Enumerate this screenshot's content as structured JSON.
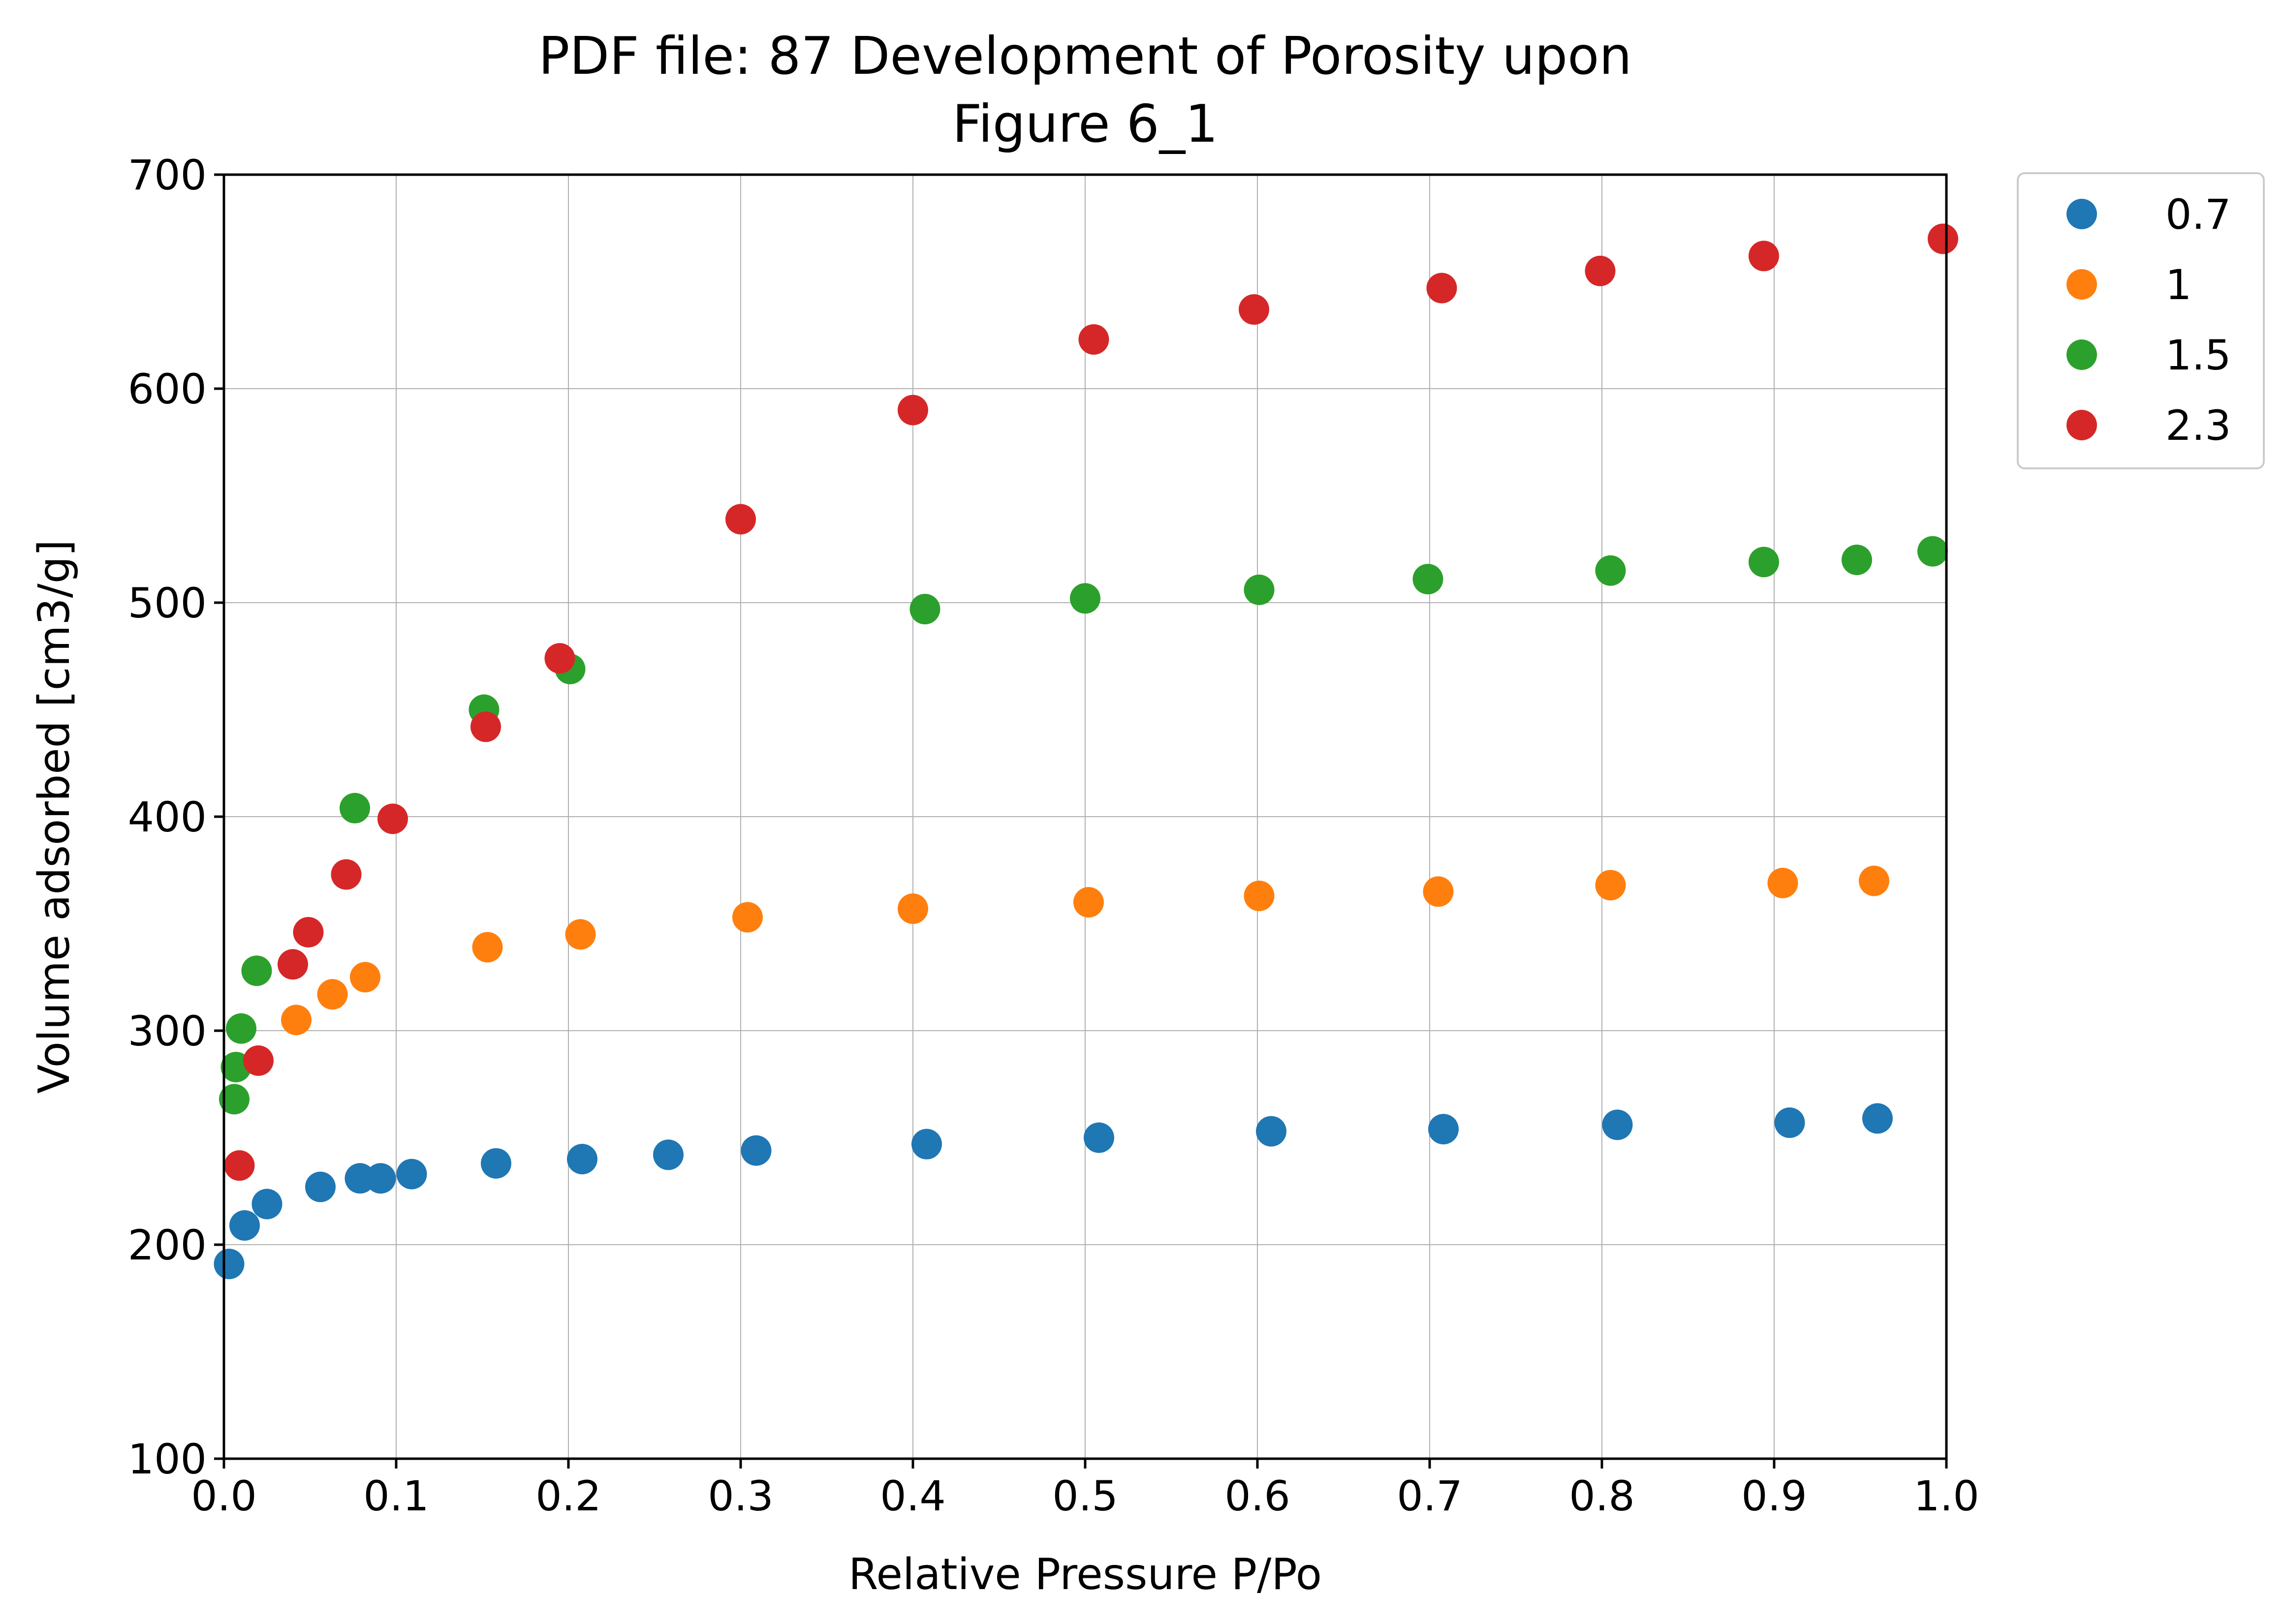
{
  "chart_data": {
    "type": "scatter",
    "title": "PDF file: 87 Development of Porosity upon",
    "subtitle": "Figure 6_1",
    "xlabel": "Relative Pressure P/Po",
    "ylabel": "Volume adsorbed [cm3/g]",
    "xlim": [
      0.0,
      1.0
    ],
    "ylim": [
      100,
      700
    ],
    "xticks": [
      0.0,
      0.1,
      0.2,
      0.3,
      0.4,
      0.5,
      0.6,
      0.7,
      0.8,
      0.9,
      1.0
    ],
    "xtick_labels": [
      "0.0",
      "0.1",
      "0.2",
      "0.3",
      "0.4",
      "0.5",
      "0.6",
      "0.7",
      "0.8",
      "0.9",
      "1.0"
    ],
    "yticks": [
      100,
      200,
      300,
      400,
      500,
      600,
      700
    ],
    "ytick_labels": [
      "100",
      "200",
      "300",
      "400",
      "500",
      "600",
      "700"
    ],
    "grid": true,
    "legend_position": "outside-top-right",
    "series": [
      {
        "name": "0.7",
        "color": "#1f77b4",
        "points": [
          [
            0.003,
            191
          ],
          [
            0.012,
            209
          ],
          [
            0.025,
            219
          ],
          [
            0.056,
            227
          ],
          [
            0.079,
            231
          ],
          [
            0.091,
            231
          ],
          [
            0.109,
            233
          ],
          [
            0.158,
            238
          ],
          [
            0.208,
            240
          ],
          [
            0.258,
            242
          ],
          [
            0.309,
            244
          ],
          [
            0.408,
            247
          ],
          [
            0.508,
            250
          ],
          [
            0.608,
            253
          ],
          [
            0.708,
            254
          ],
          [
            0.809,
            256
          ],
          [
            0.909,
            257
          ],
          [
            0.96,
            259
          ]
        ]
      },
      {
        "name": "1",
        "color": "#ff7f0e",
        "points": [
          [
            0.042,
            305
          ],
          [
            0.063,
            317
          ],
          [
            0.082,
            325
          ],
          [
            0.153,
            339
          ],
          [
            0.207,
            345
          ],
          [
            0.304,
            353
          ],
          [
            0.4,
            357
          ],
          [
            0.502,
            360
          ],
          [
            0.601,
            363
          ],
          [
            0.705,
            365
          ],
          [
            0.805,
            368
          ],
          [
            0.905,
            369
          ],
          [
            0.958,
            370
          ]
        ]
      },
      {
        "name": "1.5",
        "color": "#2ca02c",
        "points": [
          [
            0.006,
            268
          ],
          [
            0.007,
            283
          ],
          [
            0.01,
            301
          ],
          [
            0.019,
            328
          ],
          [
            0.076,
            404
          ],
          [
            0.151,
            450
          ],
          [
            0.201,
            469
          ],
          [
            0.407,
            497
          ],
          [
            0.5,
            502
          ],
          [
            0.601,
            506
          ],
          [
            0.699,
            511
          ],
          [
            0.805,
            515
          ],
          [
            0.894,
            519
          ],
          [
            0.948,
            520
          ],
          [
            0.992,
            524
          ]
        ]
      },
      {
        "name": "2.3",
        "color": "#d62728",
        "points": [
          [
            0.009,
            237
          ],
          [
            0.02,
            286
          ],
          [
            0.04,
            331
          ],
          [
            0.049,
            346
          ],
          [
            0.071,
            373
          ],
          [
            0.098,
            399
          ],
          [
            0.152,
            442
          ],
          [
            0.195,
            474
          ],
          [
            0.3,
            539
          ],
          [
            0.4,
            590
          ],
          [
            0.505,
            623
          ],
          [
            0.598,
            637
          ],
          [
            0.707,
            647
          ],
          [
            0.799,
            655
          ],
          [
            0.894,
            662
          ],
          [
            0.998,
            670
          ]
        ]
      }
    ]
  }
}
